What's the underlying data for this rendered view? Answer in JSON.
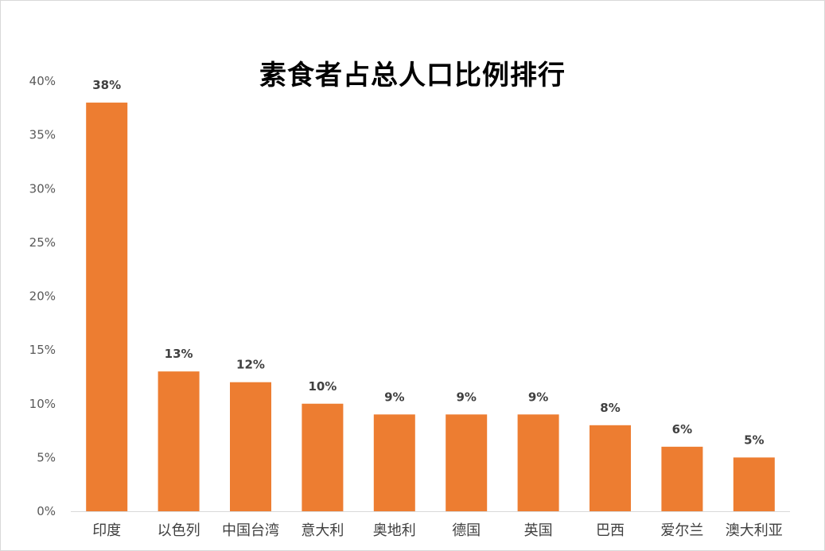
{
  "chart_data": {
    "type": "bar",
    "title": "素食者占总人口比例排行",
    "xlabel": "",
    "ylabel": "",
    "categories": [
      "印度",
      "以色列",
      "中国台湾",
      "意大利",
      "奥地利",
      "德国",
      "英国",
      "巴西",
      "爱尔兰",
      "澳大利亚"
    ],
    "values": [
      38,
      13,
      12,
      10,
      9,
      9,
      9,
      8,
      6,
      5
    ],
    "data_labels": [
      "38%",
      "13%",
      "12%",
      "10%",
      "9%",
      "9%",
      "9%",
      "8%",
      "6%",
      "5%"
    ],
    "ylim": [
      0,
      40
    ],
    "y_ticks": [
      0,
      5,
      10,
      15,
      20,
      25,
      30,
      35,
      40
    ],
    "y_tick_labels": [
      "0%",
      "5%",
      "10%",
      "15%",
      "20%",
      "25%",
      "30%",
      "35%",
      "40%"
    ],
    "bar_color": "#ED7D31",
    "grid": false,
    "legend": "none"
  }
}
